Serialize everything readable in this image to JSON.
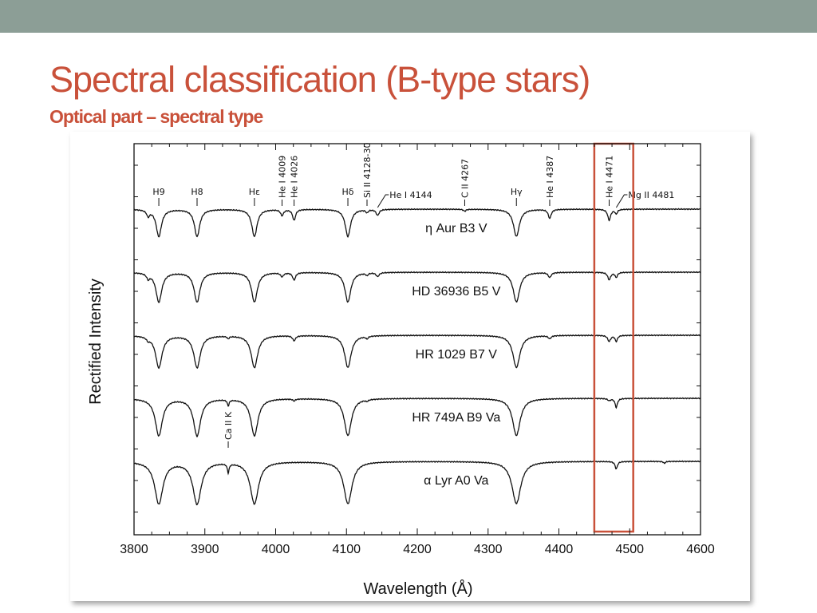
{
  "slide": {
    "title": "Spectral classification (B-type stars)",
    "subtitle": "Optical part – spectral type",
    "top_band_color": "#8c9e96",
    "accent_color": "#c9513a"
  },
  "chart_data": {
    "type": "line",
    "title": "",
    "xlabel": "Wavelength (Å)",
    "ylabel": "Rectified Intensity",
    "xlim": [
      3800,
      4600
    ],
    "xticks": [
      3800,
      3900,
      4000,
      4100,
      4200,
      4300,
      4400,
      4500,
      4600
    ],
    "grid": false,
    "series": [
      {
        "name": "η Aur  B3 V",
        "continuum": 4.0,
        "lines": [
          [
            3820,
            0.12,
            2.5
          ],
          [
            3835,
            0.55,
            4.5
          ],
          [
            3889,
            0.55,
            4.5
          ],
          [
            3970,
            0.55,
            4.5
          ],
          [
            4009,
            0.12,
            2.5
          ],
          [
            4026,
            0.22,
            2.5
          ],
          [
            4102,
            0.55,
            4.5
          ],
          [
            4129,
            0.06,
            2
          ],
          [
            4144,
            0.12,
            2.5
          ],
          [
            4267,
            0.04,
            2
          ],
          [
            4340,
            0.55,
            5
          ],
          [
            4387,
            0.18,
            2.5
          ],
          [
            4471,
            0.22,
            2.5
          ],
          [
            4481,
            0.09,
            2
          ]
        ]
      },
      {
        "name": "HD 36936  B5 V",
        "continuum": 3.0,
        "lines": [
          [
            3820,
            0.1,
            2.5
          ],
          [
            3835,
            0.6,
            5
          ],
          [
            3889,
            0.6,
            5
          ],
          [
            3970,
            0.6,
            5
          ],
          [
            4009,
            0.08,
            2.5
          ],
          [
            4026,
            0.15,
            2.5
          ],
          [
            4102,
            0.6,
            5
          ],
          [
            4129,
            0.05,
            2
          ],
          [
            4144,
            0.08,
            2.5
          ],
          [
            4340,
            0.6,
            5.5
          ],
          [
            4387,
            0.1,
            2.5
          ],
          [
            4471,
            0.15,
            2.5
          ],
          [
            4481,
            0.1,
            2
          ]
        ]
      },
      {
        "name": "HR 1029  B7 V",
        "continuum": 2.0,
        "lines": [
          [
            3820,
            0.06,
            2.5
          ],
          [
            3835,
            0.65,
            5.5
          ],
          [
            3889,
            0.65,
            5.5
          ],
          [
            3933,
            0.05,
            1.5
          ],
          [
            3970,
            0.65,
            5.5
          ],
          [
            4026,
            0.1,
            2.5
          ],
          [
            4102,
            0.65,
            5.5
          ],
          [
            4129,
            0.05,
            2
          ],
          [
            4340,
            0.65,
            6
          ],
          [
            4387,
            0.06,
            2.5
          ],
          [
            4471,
            0.12,
            2.5
          ],
          [
            4481,
            0.12,
            2
          ]
        ]
      },
      {
        "name": "HR 749A  B9 Va",
        "continuum": 1.0,
        "lines": [
          [
            3835,
            0.75,
            6
          ],
          [
            3889,
            0.75,
            6
          ],
          [
            3933,
            0.12,
            1.5
          ],
          [
            3970,
            0.75,
            6
          ],
          [
            4026,
            0.04,
            2
          ],
          [
            4102,
            0.75,
            6
          ],
          [
            4129,
            0.03,
            2
          ],
          [
            4340,
            0.75,
            6.5
          ],
          [
            4471,
            0.04,
            2.5
          ],
          [
            4481,
            0.18,
            2
          ]
        ]
      },
      {
        "name": "α Lyr  A0 Va",
        "continuum": 0.0,
        "lines": [
          [
            3835,
            0.85,
            7
          ],
          [
            3889,
            0.85,
            7
          ],
          [
            3933,
            0.18,
            1.5
          ],
          [
            3970,
            0.85,
            7
          ],
          [
            4102,
            0.85,
            7
          ],
          [
            4340,
            0.85,
            7.5
          ],
          [
            4481,
            0.15,
            2
          ],
          [
            4549,
            0.04,
            1.5
          ]
        ]
      }
    ],
    "line_ids": [
      {
        "label": "H9",
        "wavelength": 3835,
        "orientation": "horizontal"
      },
      {
        "label": "H8",
        "wavelength": 3889,
        "orientation": "horizontal"
      },
      {
        "label": "Hε",
        "wavelength": 3970,
        "orientation": "horizontal"
      },
      {
        "label": "He I 4009",
        "wavelength": 4009,
        "orientation": "vertical"
      },
      {
        "label": "He I 4026",
        "wavelength": 4026,
        "orientation": "vertical"
      },
      {
        "label": "Hδ",
        "wavelength": 4102,
        "orientation": "horizontal"
      },
      {
        "label": "Si II 4128-30",
        "wavelength": 4129,
        "orientation": "vertical"
      },
      {
        "label": "He I 4144",
        "wavelength": 4144,
        "orientation": "slanted"
      },
      {
        "label": "C II 4267",
        "wavelength": 4267,
        "orientation": "vertical"
      },
      {
        "label": "Hγ",
        "wavelength": 4340,
        "orientation": "horizontal"
      },
      {
        "label": "He I 4387",
        "wavelength": 4387,
        "orientation": "vertical"
      },
      {
        "label": "He I 4471",
        "wavelength": 4471,
        "orientation": "vertical"
      },
      {
        "label": "Mg II 4481",
        "wavelength": 4481,
        "orientation": "slanted"
      },
      {
        "label": "Ca II K",
        "wavelength": 3933,
        "orientation": "vertical"
      }
    ],
    "highlight": {
      "x_range": [
        4450,
        4505
      ],
      "color": "#c9513a"
    }
  }
}
